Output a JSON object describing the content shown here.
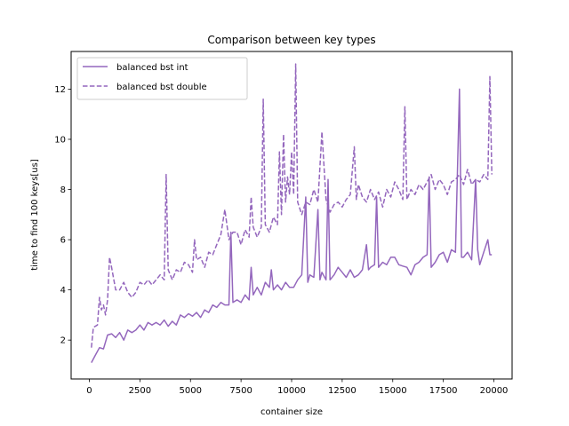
{
  "chart_data": {
    "type": "line",
    "title": "Comparison between key types",
    "xlabel": "container size",
    "ylabel": "time to find 100 keys[us]",
    "xlim": [
      -900,
      20900
    ],
    "ylim": [
      0.45,
      13.5
    ],
    "xticks": [
      0,
      2500,
      5000,
      7500,
      10000,
      12500,
      15000,
      17500,
      20000
    ],
    "yticks": [
      2,
      4,
      6,
      8,
      10,
      12
    ],
    "grid": false,
    "legend": "top-left",
    "color": "#9467bd",
    "series": [
      {
        "name": "balanced bst int",
        "style": "solid",
        "points": [
          [
            100,
            1.1
          ],
          [
            300,
            1.4
          ],
          [
            500,
            1.7
          ],
          [
            700,
            1.65
          ],
          [
            900,
            2.2
          ],
          [
            1100,
            2.25
          ],
          [
            1300,
            2.1
          ],
          [
            1500,
            2.3
          ],
          [
            1700,
            2.0
          ],
          [
            1900,
            2.4
          ],
          [
            2100,
            2.3
          ],
          [
            2300,
            2.4
          ],
          [
            2500,
            2.6
          ],
          [
            2700,
            2.4
          ],
          [
            2900,
            2.7
          ],
          [
            3100,
            2.6
          ],
          [
            3300,
            2.7
          ],
          [
            3500,
            2.6
          ],
          [
            3700,
            2.8
          ],
          [
            3900,
            2.55
          ],
          [
            4100,
            2.75
          ],
          [
            4300,
            2.6
          ],
          [
            4500,
            3.0
          ],
          [
            4700,
            2.9
          ],
          [
            4900,
            3.05
          ],
          [
            5100,
            2.95
          ],
          [
            5300,
            3.1
          ],
          [
            5500,
            2.9
          ],
          [
            5700,
            3.2
          ],
          [
            5900,
            3.1
          ],
          [
            6100,
            3.4
          ],
          [
            6300,
            3.3
          ],
          [
            6500,
            3.5
          ],
          [
            6700,
            3.4
          ],
          [
            6900,
            3.4
          ],
          [
            7000,
            6.3
          ],
          [
            7100,
            3.5
          ],
          [
            7300,
            3.6
          ],
          [
            7500,
            3.5
          ],
          [
            7700,
            3.8
          ],
          [
            7900,
            3.6
          ],
          [
            8000,
            4.9
          ],
          [
            8100,
            3.8
          ],
          [
            8300,
            4.1
          ],
          [
            8500,
            3.8
          ],
          [
            8700,
            4.3
          ],
          [
            8900,
            4.1
          ],
          [
            9000,
            4.8
          ],
          [
            9100,
            4.0
          ],
          [
            9300,
            4.2
          ],
          [
            9500,
            4.0
          ],
          [
            9700,
            4.3
          ],
          [
            9900,
            4.1
          ],
          [
            10100,
            4.1
          ],
          [
            10300,
            4.4
          ],
          [
            10500,
            4.6
          ],
          [
            10700,
            7.7
          ],
          [
            10800,
            4.3
          ],
          [
            10900,
            4.6
          ],
          [
            11100,
            4.5
          ],
          [
            11300,
            7.2
          ],
          [
            11400,
            4.4
          ],
          [
            11500,
            4.7
          ],
          [
            11700,
            4.4
          ],
          [
            11800,
            8.4
          ],
          [
            11900,
            4.4
          ],
          [
            12100,
            4.6
          ],
          [
            12300,
            4.9
          ],
          [
            12500,
            4.7
          ],
          [
            12700,
            4.5
          ],
          [
            12900,
            4.8
          ],
          [
            13100,
            4.5
          ],
          [
            13300,
            4.6
          ],
          [
            13500,
            4.8
          ],
          [
            13700,
            5.8
          ],
          [
            13800,
            4.8
          ],
          [
            13900,
            4.9
          ],
          [
            14100,
            5.0
          ],
          [
            14200,
            7.7
          ],
          [
            14300,
            4.9
          ],
          [
            14500,
            5.1
          ],
          [
            14700,
            5.0
          ],
          [
            14900,
            5.3
          ],
          [
            15100,
            5.3
          ],
          [
            15300,
            5.0
          ],
          [
            15500,
            4.95
          ],
          [
            15700,
            4.9
          ],
          [
            15900,
            4.6
          ],
          [
            16100,
            5.0
          ],
          [
            16300,
            5.1
          ],
          [
            16500,
            5.3
          ],
          [
            16700,
            5.4
          ],
          [
            16800,
            8.5
          ],
          [
            16900,
            4.9
          ],
          [
            17100,
            5.1
          ],
          [
            17300,
            5.4
          ],
          [
            17500,
            5.5
          ],
          [
            17700,
            5.1
          ],
          [
            17900,
            5.6
          ],
          [
            18100,
            5.5
          ],
          [
            18300,
            12.0
          ],
          [
            18400,
            5.3
          ],
          [
            18500,
            5.3
          ],
          [
            18700,
            5.5
          ],
          [
            18900,
            5.2
          ],
          [
            19100,
            8.4
          ],
          [
            19200,
            5.6
          ],
          [
            19300,
            5.0
          ],
          [
            19500,
            5.5
          ],
          [
            19700,
            6.0
          ],
          [
            19800,
            5.4
          ],
          [
            19900,
            5.4
          ]
        ]
      },
      {
        "name": "balanced bst double",
        "style": "dashed",
        "points": [
          [
            100,
            1.7
          ],
          [
            200,
            2.5
          ],
          [
            400,
            2.6
          ],
          [
            500,
            3.7
          ],
          [
            600,
            3.2
          ],
          [
            700,
            3.4
          ],
          [
            800,
            3.0
          ],
          [
            900,
            3.6
          ],
          [
            1000,
            5.3
          ],
          [
            1100,
            4.9
          ],
          [
            1300,
            4.0
          ],
          [
            1500,
            4.0
          ],
          [
            1700,
            4.3
          ],
          [
            1900,
            3.9
          ],
          [
            2100,
            3.7
          ],
          [
            2300,
            3.9
          ],
          [
            2500,
            4.3
          ],
          [
            2700,
            4.2
          ],
          [
            2900,
            4.4
          ],
          [
            3100,
            4.2
          ],
          [
            3300,
            4.4
          ],
          [
            3500,
            4.6
          ],
          [
            3700,
            4.4
          ],
          [
            3800,
            8.6
          ],
          [
            3900,
            4.8
          ],
          [
            4100,
            4.4
          ],
          [
            4300,
            4.8
          ],
          [
            4500,
            4.7
          ],
          [
            4700,
            5.1
          ],
          [
            4900,
            5.0
          ],
          [
            5100,
            4.7
          ],
          [
            5200,
            6.0
          ],
          [
            5300,
            5.2
          ],
          [
            5500,
            5.3
          ],
          [
            5700,
            4.9
          ],
          [
            5900,
            5.5
          ],
          [
            6100,
            5.4
          ],
          [
            6300,
            5.8
          ],
          [
            6500,
            6.2
          ],
          [
            6700,
            7.2
          ],
          [
            6900,
            6.0
          ],
          [
            7100,
            6.3
          ],
          [
            7300,
            6.3
          ],
          [
            7500,
            5.8
          ],
          [
            7700,
            6.4
          ],
          [
            7900,
            6.1
          ],
          [
            8000,
            7.7
          ],
          [
            8100,
            6.5
          ],
          [
            8300,
            6.1
          ],
          [
            8500,
            6.5
          ],
          [
            8600,
            11.6
          ],
          [
            8700,
            6.6
          ],
          [
            8900,
            6.3
          ],
          [
            9100,
            6.9
          ],
          [
            9300,
            6.6
          ],
          [
            9400,
            9.5
          ],
          [
            9500,
            7.0
          ],
          [
            9600,
            10.2
          ],
          [
            9700,
            7.5
          ],
          [
            9800,
            8.5
          ],
          [
            9900,
            7.8
          ],
          [
            10000,
            9.5
          ],
          [
            10100,
            7.8
          ],
          [
            10200,
            13.0
          ],
          [
            10300,
            7.5
          ],
          [
            10500,
            7.0
          ],
          [
            10700,
            7.5
          ],
          [
            10900,
            7.4
          ],
          [
            11100,
            8.0
          ],
          [
            11300,
            7.5
          ],
          [
            11500,
            10.3
          ],
          [
            11700,
            7.6
          ],
          [
            11900,
            7.1
          ],
          [
            12100,
            7.4
          ],
          [
            12300,
            7.5
          ],
          [
            12500,
            7.3
          ],
          [
            12700,
            7.6
          ],
          [
            12900,
            7.8
          ],
          [
            13100,
            9.7
          ],
          [
            13200,
            7.6
          ],
          [
            13300,
            8.2
          ],
          [
            13500,
            7.7
          ],
          [
            13700,
            7.5
          ],
          [
            13900,
            8.0
          ],
          [
            14100,
            7.6
          ],
          [
            14300,
            7.9
          ],
          [
            14500,
            7.3
          ],
          [
            14700,
            8.0
          ],
          [
            14900,
            7.7
          ],
          [
            15100,
            8.3
          ],
          [
            15300,
            8.0
          ],
          [
            15500,
            7.6
          ],
          [
            15600,
            11.3
          ],
          [
            15700,
            7.6
          ],
          [
            15900,
            8.0
          ],
          [
            16100,
            7.8
          ],
          [
            16300,
            8.2
          ],
          [
            16500,
            8.0
          ],
          [
            16700,
            8.3
          ],
          [
            16900,
            8.6
          ],
          [
            17100,
            8.0
          ],
          [
            17300,
            8.4
          ],
          [
            17500,
            8.2
          ],
          [
            17700,
            7.8
          ],
          [
            17900,
            8.3
          ],
          [
            18100,
            8.4
          ],
          [
            18300,
            8.6
          ],
          [
            18500,
            8.2
          ],
          [
            18700,
            8.8
          ],
          [
            18900,
            8.2
          ],
          [
            19100,
            8.4
          ],
          [
            19300,
            8.3
          ],
          [
            19500,
            8.6
          ],
          [
            19700,
            8.4
          ],
          [
            19800,
            12.5
          ],
          [
            19900,
            8.6
          ]
        ]
      }
    ]
  }
}
